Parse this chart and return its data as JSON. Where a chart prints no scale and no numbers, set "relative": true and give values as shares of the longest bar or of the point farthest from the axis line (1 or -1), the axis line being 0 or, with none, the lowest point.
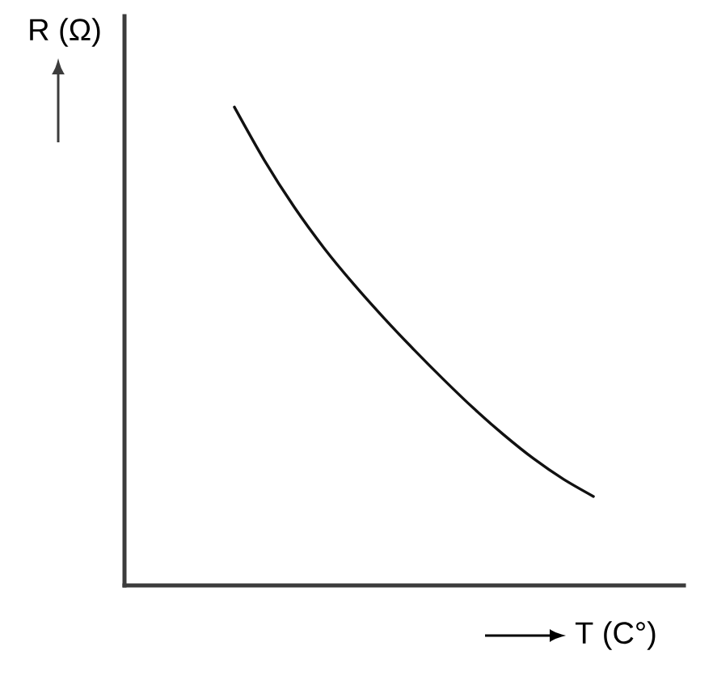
{
  "chart_data": {
    "type": "line",
    "xlabel": "T (C°)",
    "ylabel": "R (Ω)",
    "relative": true,
    "categories": [
      null,
      null,
      null,
      null,
      null,
      null,
      null,
      null,
      null,
      null,
      null,
      null,
      null
    ],
    "values": [
      1.0,
      0.889,
      0.791,
      0.705,
      0.629,
      0.559,
      0.493,
      0.43,
      0.37,
      0.315,
      0.265,
      0.222,
      0.186
    ],
    "color": "#111111"
  }
}
